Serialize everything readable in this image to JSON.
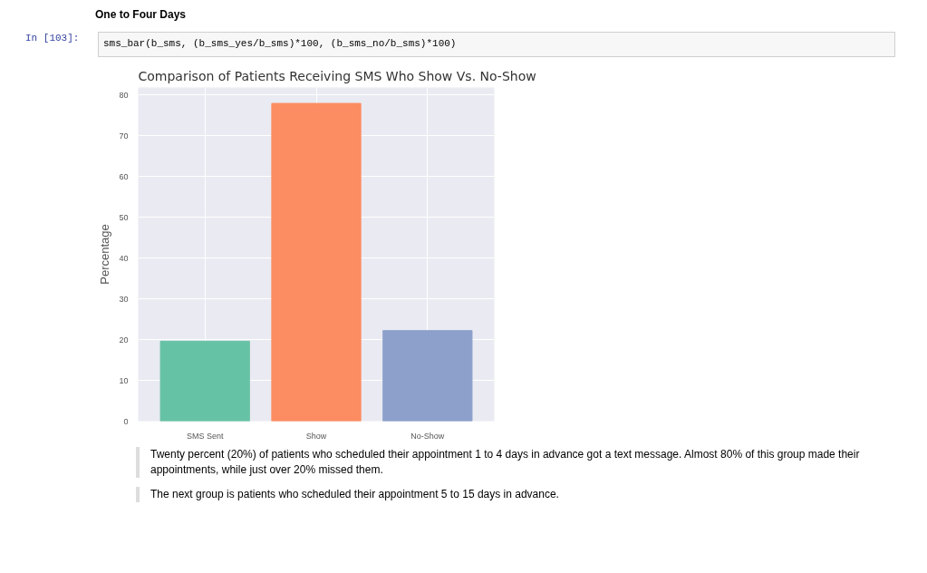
{
  "chart_data": {
    "type": "bar",
    "title": "Comparison of Patients Receiving SMS Who Show Vs. No-Show",
    "ylabel": "Percentage",
    "categories": [
      "SMS Sent",
      "Show",
      "No-Show"
    ],
    "values": [
      19.6,
      77.9,
      22.2
    ],
    "colors": [
      "#66c2a5",
      "#fc8d62",
      "#8da0cb"
    ],
    "ylim": [
      0,
      81.8
    ],
    "yticks": [
      0,
      10,
      20,
      30,
      40,
      50,
      60,
      70,
      80
    ],
    "grid": true,
    "annotations": [
      "One to Four Days",
      "In [103]:",
      "sms_bar(b_sms, (b_sms_yes/b_sms)*100, (b_sms_no/b_sms)*100)",
      "Twenty percent (20%) of patients who scheduled their appointment 1 to 4 days in advance got a text message. Almost 80% of this group made their appointments, while just over 20% missed them.",
      "The next group is patients who scheduled their appointment 5 to 15 days in advance."
    ]
  }
}
